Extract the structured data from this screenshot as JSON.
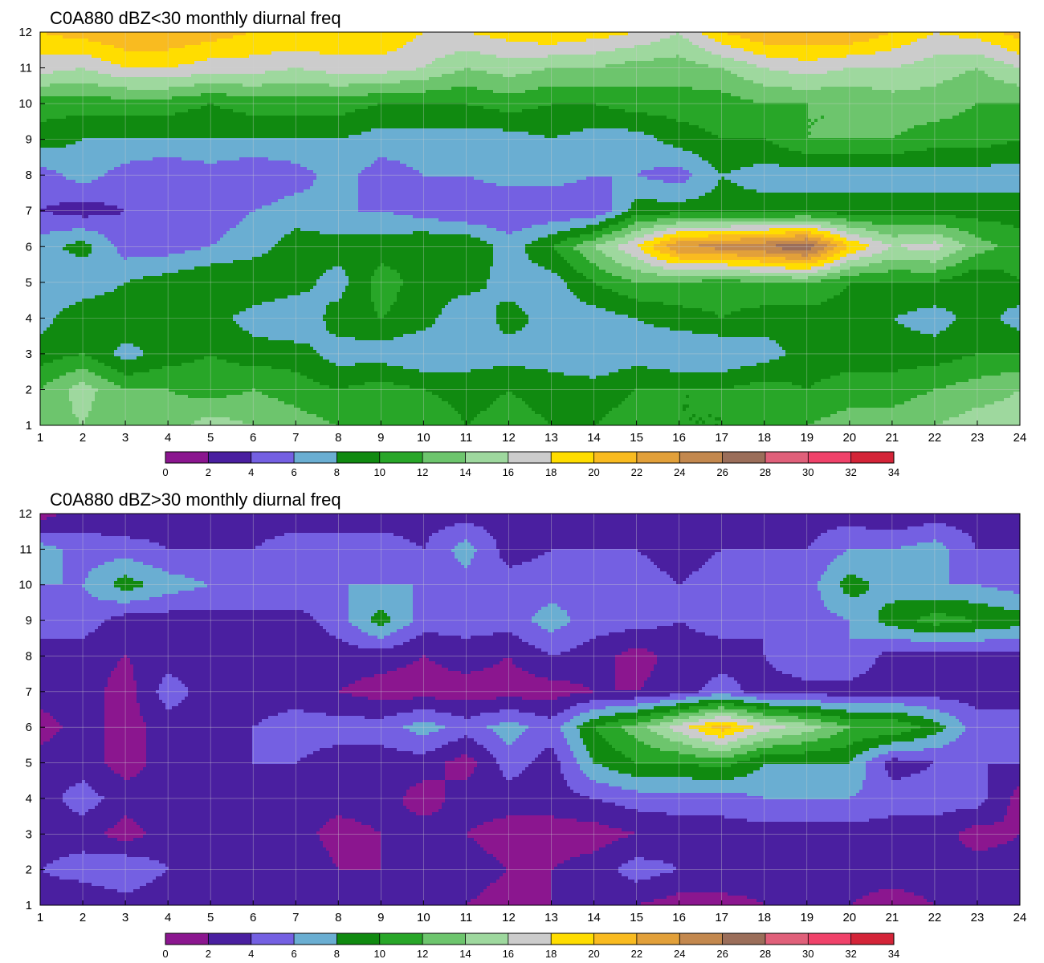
{
  "colorbar": {
    "levels": [
      0,
      2,
      4,
      6,
      8,
      10,
      12,
      14,
      16,
      18,
      20,
      22,
      24,
      26,
      28,
      30,
      32,
      34
    ],
    "colors": [
      "#8b168f",
      "#4a1fa0",
      "#7460e2",
      "#6aaed2",
      "#108a10",
      "#28a628",
      "#6dc56d",
      "#9ed89e",
      "#cccccc",
      "#ffdd00",
      "#f9bb20",
      "#e2a03a",
      "#c3884e",
      "#9b6e5a",
      "#e0607a",
      "#f0426a",
      "#d42438"
    ]
  },
  "chart_data": [
    {
      "type": "heatmap",
      "title": "C0A880 dBZ<30 monthly diurnal freq",
      "x_ticks": [
        "1",
        "2",
        "3",
        "4",
        "5",
        "6",
        "7",
        "8",
        "9",
        "10",
        "11",
        "12",
        "13",
        "14",
        "15",
        "16",
        "17",
        "18",
        "19",
        "20",
        "21",
        "22",
        "23",
        "24"
      ],
      "y_ticks": [
        "1",
        "2",
        "3",
        "4",
        "5",
        "6",
        "7",
        "8",
        "9",
        "10",
        "11",
        "12"
      ],
      "xlim": [
        1,
        24
      ],
      "ylim": [
        1,
        12
      ],
      "grid": true,
      "x": [
        1,
        2,
        3,
        4,
        5,
        6,
        7,
        8,
        9,
        10,
        11,
        12,
        13,
        14,
        15,
        16,
        17,
        18,
        19,
        20,
        21,
        22,
        23,
        24
      ],
      "y": [
        1,
        2,
        3,
        4,
        5,
        6,
        7,
        8,
        9,
        10,
        11,
        12
      ],
      "z": [
        [
          13,
          14,
          12,
          13,
          15,
          14,
          13,
          12,
          11,
          12,
          10,
          11,
          10,
          10,
          11,
          10,
          10,
          11,
          12,
          13,
          13,
          14,
          15,
          15
        ],
        [
          12,
          15,
          12,
          12,
          11,
          12,
          11,
          10,
          11,
          10,
          9,
          10,
          9,
          9,
          10,
          10,
          10,
          11,
          10,
          11,
          11,
          12,
          13,
          14
        ],
        [
          9,
          10,
          7,
          9,
          10,
          9,
          9,
          7,
          7,
          6,
          7,
          7,
          7,
          6,
          7,
          6,
          6,
          7,
          9,
          9,
          9,
          9,
          10,
          10
        ],
        [
          7,
          10,
          10,
          10,
          9,
          7,
          6,
          9,
          10,
          9,
          6,
          9,
          7,
          7,
          8,
          9,
          10,
          9,
          9,
          9,
          8,
          7,
          9,
          7
        ],
        [
          6,
          6,
          8,
          9,
          10,
          10,
          9,
          7,
          11,
          9,
          9,
          7,
          7,
          10,
          12,
          12,
          11,
          12,
          12,
          10,
          10,
          10,
          8,
          10
        ],
        [
          7,
          9,
          5,
          5,
          6,
          7,
          9,
          9,
          9,
          10,
          10,
          7,
          10,
          14,
          18,
          24,
          25,
          26,
          28,
          20,
          16,
          17,
          13,
          11
        ],
        [
          4,
          3,
          4,
          6,
          5,
          6,
          7,
          6,
          6,
          5,
          4,
          4,
          4,
          4,
          9,
          9,
          9,
          9,
          9,
          9,
          9,
          9,
          9,
          9
        ],
        [
          5,
          7,
          5,
          4,
          5,
          4,
          5,
          7,
          5,
          6,
          6,
          7,
          7,
          6,
          6,
          5,
          8,
          7,
          7,
          7,
          7,
          7,
          7,
          7
        ],
        [
          9,
          8,
          8,
          8,
          8,
          8,
          8,
          8,
          7,
          7,
          7,
          7,
          8,
          7,
          7,
          9,
          10,
          10,
          12,
          12,
          12,
          11,
          11,
          10
        ],
        [
          11,
          11,
          11,
          11,
          10,
          11,
          11,
          11,
          10,
          10,
          10,
          11,
          10,
          10,
          11,
          11,
          11,
          12,
          12,
          12,
          13,
          13,
          12,
          12
        ],
        [
          17,
          16,
          18,
          18,
          17,
          17,
          16,
          17,
          17,
          16,
          14,
          15,
          14,
          14,
          13,
          13,
          14,
          16,
          17,
          16,
          16,
          15,
          14,
          16
        ],
        [
          20,
          21,
          22,
          22,
          21,
          20,
          20,
          20,
          20,
          18,
          18,
          19,
          20,
          19,
          18,
          16,
          20,
          22,
          22,
          22,
          20,
          18,
          19,
          21
        ]
      ]
    },
    {
      "type": "heatmap",
      "title": "C0A880 dBZ>30 monthly diurnal freq",
      "x_ticks": [
        "1",
        "2",
        "3",
        "4",
        "5",
        "6",
        "7",
        "8",
        "9",
        "10",
        "11",
        "12",
        "13",
        "14",
        "15",
        "16",
        "17",
        "18",
        "19",
        "20",
        "21",
        "22",
        "23",
        "24"
      ],
      "y_ticks": [
        "1",
        "2",
        "3",
        "4",
        "5",
        "6",
        "7",
        "8",
        "9",
        "10",
        "11",
        "12"
      ],
      "xlim": [
        1,
        24
      ],
      "ylim": [
        1,
        12
      ],
      "grid": true,
      "x": [
        1,
        2,
        3,
        4,
        5,
        6,
        7,
        8,
        9,
        10,
        11,
        12,
        13,
        14,
        15,
        16,
        17,
        18,
        19,
        20,
        21,
        22,
        23,
        24
      ],
      "y": [
        1,
        2,
        3,
        4,
        5,
        6,
        7,
        8,
        9,
        10,
        11,
        12
      ],
      "z": [
        [
          3,
          2,
          3,
          2,
          4,
          3,
          3,
          3,
          3,
          2,
          2,
          1,
          2,
          2,
          2,
          1,
          1,
          2,
          2,
          2,
          1,
          2,
          3,
          3
        ],
        [
          4,
          5,
          6,
          4,
          4,
          4,
          4,
          2,
          2,
          3,
          3,
          2,
          2,
          3,
          5,
          4,
          4,
          3,
          3,
          3,
          3,
          3,
          3,
          3
        ],
        [
          3,
          3,
          1,
          3,
          3,
          4,
          3,
          1,
          2,
          3,
          2,
          1,
          1,
          1,
          2,
          3,
          3,
          3,
          3,
          3,
          3,
          3,
          1,
          2
        ],
        [
          3,
          5,
          3,
          3,
          3,
          3,
          3,
          3,
          3,
          1,
          3,
          3,
          3,
          4,
          5,
          5,
          5,
          6,
          6,
          6,
          5,
          5,
          5,
          1
        ],
        [
          3,
          3,
          1,
          3,
          3,
          4,
          4,
          3,
          3,
          3,
          1,
          5,
          3,
          8,
          10,
          10,
          11,
          8,
          8,
          8,
          3,
          4,
          4,
          4
        ],
        [
          1,
          3,
          1,
          3,
          3,
          4,
          5,
          5,
          5,
          7,
          5,
          7,
          5,
          10,
          13,
          17,
          21,
          17,
          15,
          12,
          12,
          9,
          5,
          5
        ],
        [
          3,
          3,
          1,
          5,
          3,
          3,
          3,
          2,
          1,
          1,
          1,
          1,
          1,
          2,
          2,
          3,
          5,
          3,
          3,
          3,
          3,
          3,
          3,
          3
        ],
        [
          3,
          3,
          2,
          3,
          3,
          3,
          3,
          3,
          3,
          2,
          3,
          2,
          4,
          3,
          1,
          3,
          3,
          4,
          6,
          6,
          3,
          3,
          3,
          3
        ],
        [
          5,
          5,
          3,
          3,
          3,
          3,
          3,
          5,
          9,
          5,
          5,
          5,
          7,
          5,
          5,
          4,
          5,
          4,
          5,
          6,
          9,
          11,
          10,
          9
        ],
        [
          6,
          6,
          9,
          7,
          6,
          6,
          6,
          6,
          6,
          6,
          5,
          5,
          5,
          5,
          5,
          4,
          5,
          5,
          5,
          9,
          7,
          6,
          6,
          5
        ],
        [
          7,
          5,
          5,
          4,
          4,
          4,
          5,
          5,
          5,
          4,
          7,
          3,
          4,
          4,
          4,
          3,
          4,
          4,
          4,
          6,
          6,
          7,
          4,
          4
        ],
        [
          1,
          3,
          2,
          3,
          4,
          3,
          3,
          3,
          3,
          3,
          3,
          3,
          2,
          2,
          3,
          3,
          3,
          3,
          3,
          3,
          2,
          3,
          3,
          3
        ]
      ]
    }
  ]
}
